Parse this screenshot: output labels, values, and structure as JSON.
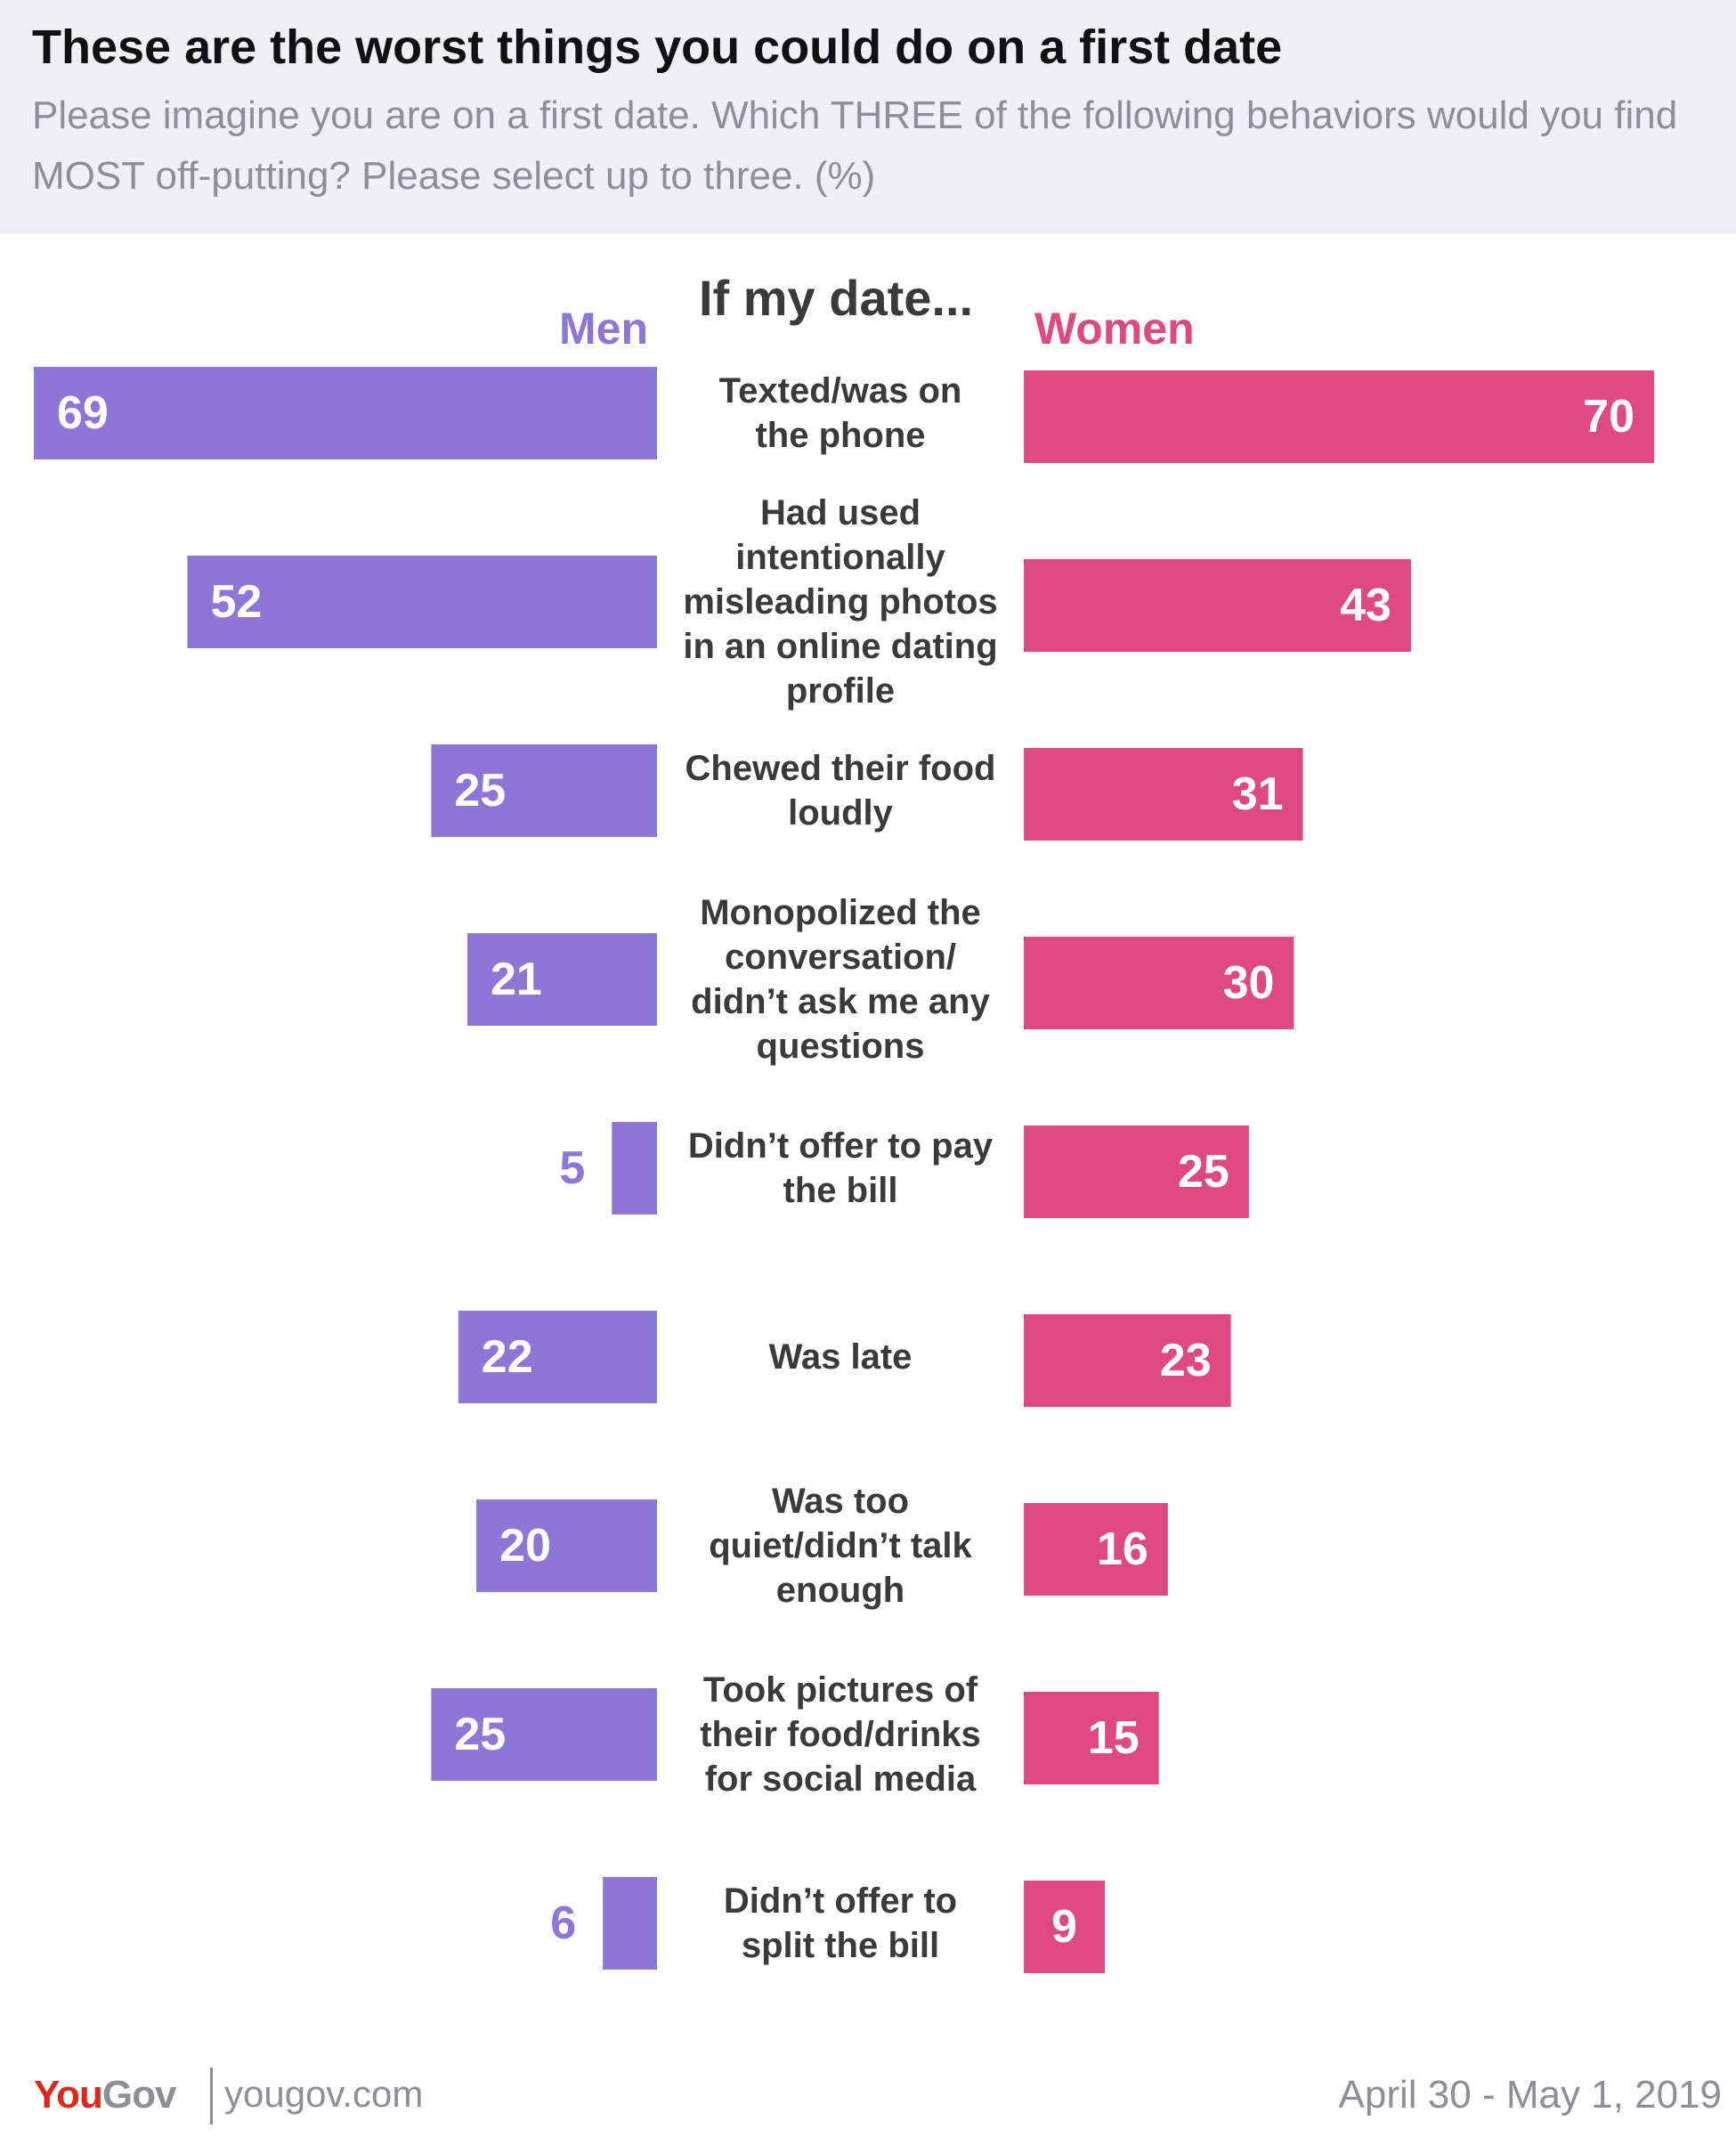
{
  "header": {
    "title": "These are the worst things you could do on a first date",
    "subtitle": "Please imagine you are on a first date. Which THREE of the following behaviors would you find MOST off-putting? Please select up to three. (%)"
  },
  "chart_data": {
    "type": "bar",
    "orientation": "horizontal-butterfly",
    "title": "These are the worst things you could do on a first date",
    "category_header": "If my date...",
    "unit": "%",
    "xlim": [
      0,
      70
    ],
    "categories": [
      [
        "Texted/was on",
        "the phone"
      ],
      [
        "Had used",
        "intentionally",
        "misleading photos",
        "in an online dating",
        "profile"
      ],
      [
        "Chewed their food",
        "loudly"
      ],
      [
        "Monopolized the",
        "conversation/",
        "didn’t ask me any",
        "questions"
      ],
      [
        "Didn’t offer to pay",
        "the bill"
      ],
      [
        "Was late"
      ],
      [
        "Was too",
        "quiet/didn’t talk",
        "enough"
      ],
      [
        "Took pictures of",
        "their food/drinks",
        "for social media"
      ],
      [
        "Didn’t offer to",
        "split the bill"
      ]
    ],
    "series": [
      {
        "name": "Men",
        "color": "#8d76d6",
        "values": [
          69,
          52,
          25,
          21,
          5,
          22,
          20,
          25,
          6
        ]
      },
      {
        "name": "Women",
        "color": "#de4a7f",
        "values": [
          70,
          43,
          31,
          30,
          25,
          23,
          16,
          15,
          9
        ]
      }
    ]
  },
  "footer": {
    "logo_you": "You",
    "logo_gov": "Gov",
    "site": "yougov.com",
    "date": "April 30 - May 1, 2019"
  },
  "colors": {
    "men": "#8d76d6",
    "women": "#de4a7f",
    "header_bg": "#efeff4",
    "label_text": "#3a3a3a"
  }
}
